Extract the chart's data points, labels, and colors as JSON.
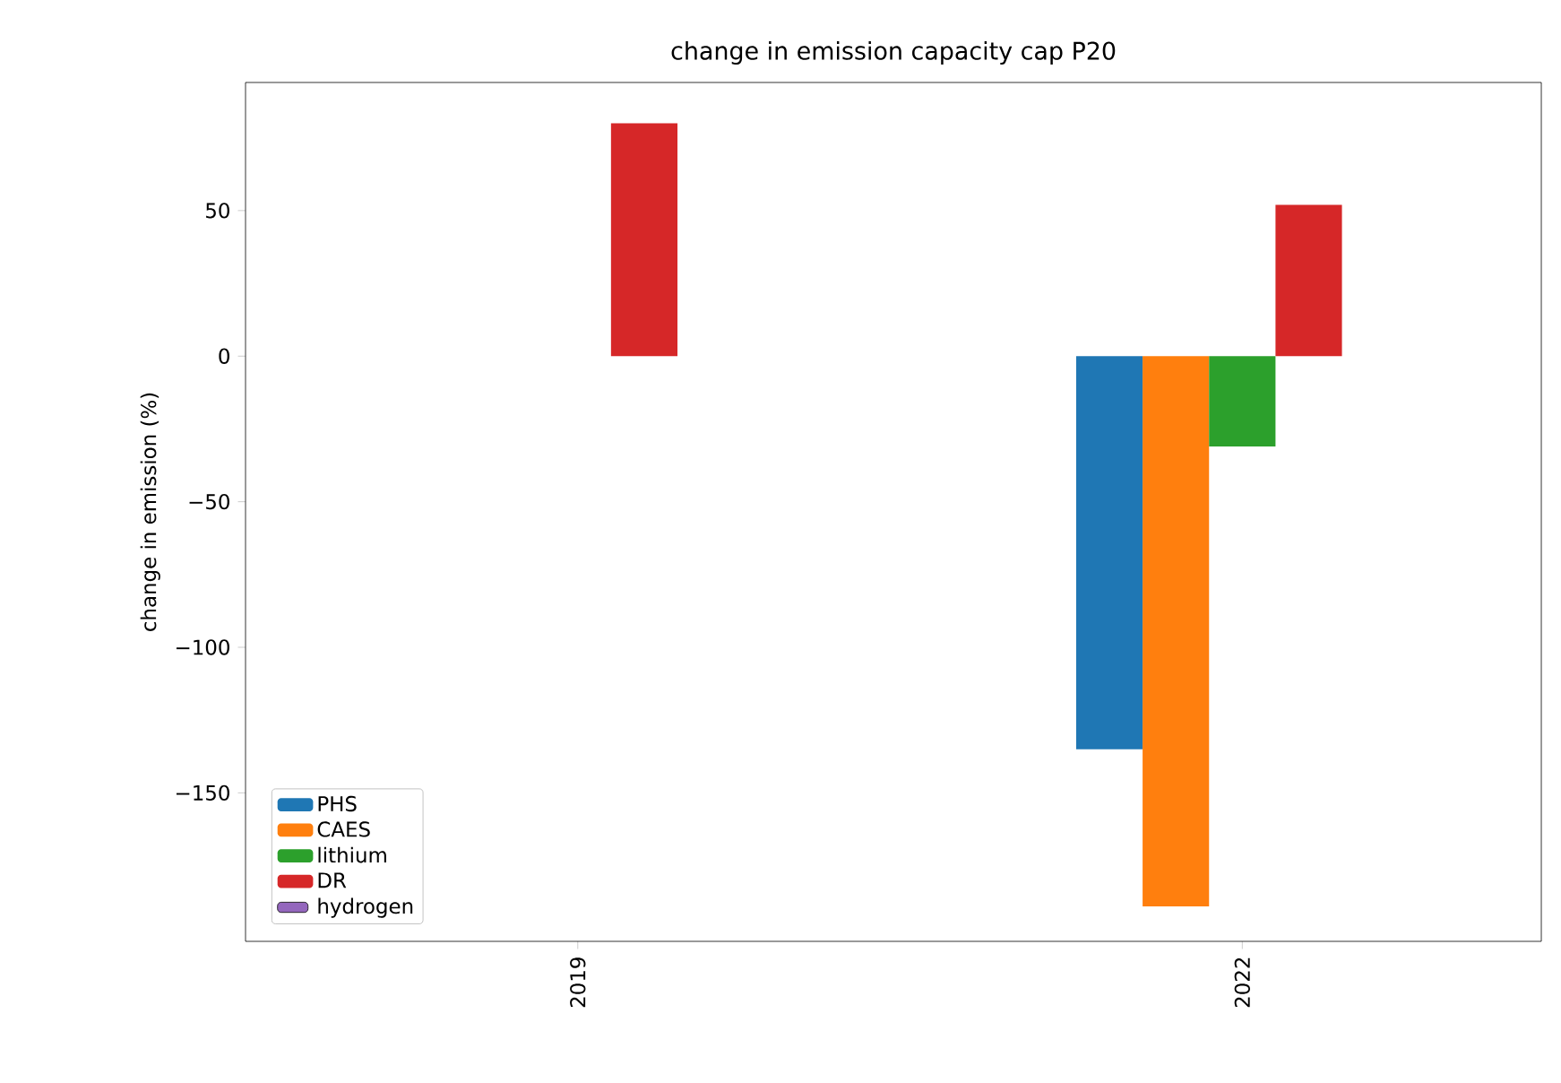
{
  "chart_data": {
    "type": "bar",
    "title": "change in emission capacity cap P20",
    "ylabel": "change in emission (%)",
    "categories": [
      "2019",
      "2022"
    ],
    "series": [
      {
        "name": "PHS",
        "color": "#1f77b4",
        "values": [
          null,
          -135
        ]
      },
      {
        "name": "CAES",
        "color": "#ff7f0e",
        "values": [
          null,
          -189
        ]
      },
      {
        "name": "lithium",
        "color": "#2ca02c",
        "values": [
          null,
          -31
        ]
      },
      {
        "name": "DR",
        "color": "#d62728",
        "values": [
          80,
          52
        ]
      },
      {
        "name": "hydrogen",
        "color": "#9467bd",
        "values": [
          null,
          null
        ]
      }
    ],
    "ylim": [
      -201,
      94
    ],
    "yticks": [
      {
        "value": -150,
        "label": "−150"
      },
      {
        "value": -100,
        "label": "−100"
      },
      {
        "value": -50,
        "label": "−50"
      },
      0,
      50
    ],
    "grid": false,
    "legend": "bottom left"
  }
}
